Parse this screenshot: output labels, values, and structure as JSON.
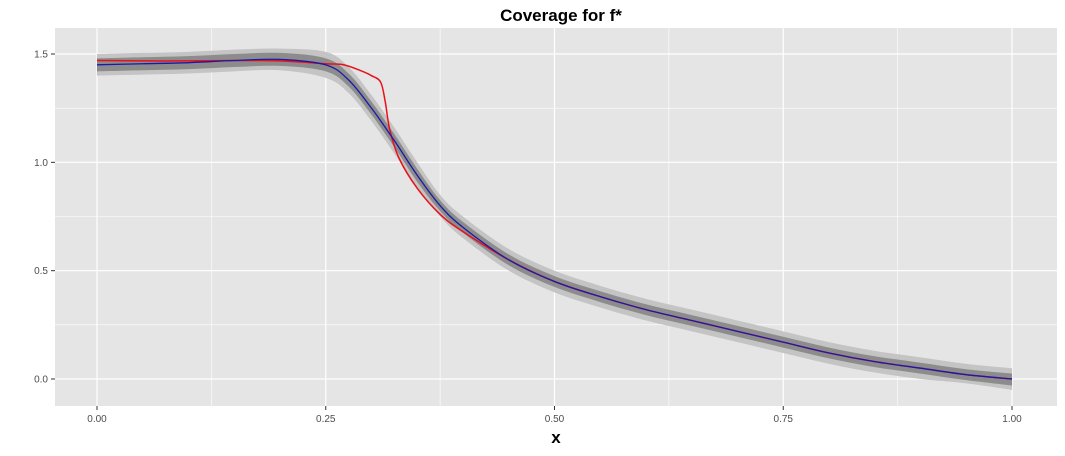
{
  "chart_data": {
    "type": "line",
    "title": "Coverage for f*",
    "xlabel": "x",
    "ylabel": "",
    "xlim": [
      0.0,
      1.0
    ],
    "ylim": [
      0.0,
      1.5
    ],
    "x_ticks": [
      {
        "value": 0.0,
        "label": "0.00"
      },
      {
        "value": 0.25,
        "label": "0.25"
      },
      {
        "value": 0.5,
        "label": "0.50"
      },
      {
        "value": 0.75,
        "label": "0.75"
      },
      {
        "value": 1.0,
        "label": "1.00"
      }
    ],
    "y_ticks": [
      {
        "value": 0.0,
        "label": "0.0"
      },
      {
        "value": 0.5,
        "label": "0.5"
      },
      {
        "value": 1.0,
        "label": "1.0"
      },
      {
        "value": 1.5,
        "label": "1.5"
      }
    ],
    "grid": true,
    "legend": "none",
    "colors": {
      "panel": "#e5e5e5",
      "grid": "#ffffff",
      "band_outer": "#c4c4c4",
      "band_inner": "#8c8c8c",
      "estimate": "#1a1aa8",
      "truth": "#e8111b"
    },
    "x": [
      0.0,
      0.05,
      0.1,
      0.15,
      0.2,
      0.25,
      0.275,
      0.3,
      0.325,
      0.35,
      0.375,
      0.4,
      0.45,
      0.5,
      0.55,
      0.6,
      0.65,
      0.7,
      0.75,
      0.8,
      0.85,
      0.9,
      0.95,
      1.0
    ],
    "series": [
      {
        "values": [
          1.45,
          1.455,
          1.46,
          1.47,
          1.475,
          1.45,
          1.38,
          1.25,
          1.1,
          0.94,
          0.8,
          0.7,
          0.55,
          0.45,
          0.38,
          0.32,
          0.27,
          0.22,
          0.17,
          0.12,
          0.08,
          0.05,
          0.02,
          0.0
        ],
        "lower_outer": [
          1.4,
          1.405,
          1.41,
          1.42,
          1.425,
          1.39,
          1.32,
          1.19,
          1.04,
          0.88,
          0.75,
          0.65,
          0.5,
          0.4,
          0.33,
          0.27,
          0.22,
          0.17,
          0.12,
          0.07,
          0.03,
          0.0,
          -0.02,
          -0.05
        ],
        "upper_outer": [
          1.5,
          1.505,
          1.51,
          1.52,
          1.525,
          1.51,
          1.44,
          1.31,
          1.16,
          1.0,
          0.85,
          0.75,
          0.6,
          0.5,
          0.43,
          0.37,
          0.32,
          0.27,
          0.22,
          0.17,
          0.13,
          0.1,
          0.07,
          0.05
        ],
        "lower_inner": [
          1.42,
          1.425,
          1.43,
          1.44,
          1.445,
          1.42,
          1.35,
          1.22,
          1.07,
          0.91,
          0.775,
          0.675,
          0.525,
          0.425,
          0.355,
          0.295,
          0.245,
          0.195,
          0.145,
          0.095,
          0.055,
          0.025,
          -0.005,
          -0.03
        ],
        "upper_inner": [
          1.48,
          1.485,
          1.49,
          1.5,
          1.505,
          1.48,
          1.41,
          1.28,
          1.13,
          0.97,
          0.825,
          0.725,
          0.575,
          0.475,
          0.405,
          0.345,
          0.295,
          0.245,
          0.195,
          0.145,
          0.105,
          0.075,
          0.045,
          0.025
        ]
      },
      {
        "x": [
          0.0,
          0.05,
          0.1,
          0.15,
          0.2,
          0.25,
          0.27,
          0.29,
          0.3,
          0.31,
          0.315,
          0.32,
          0.33,
          0.35,
          0.375,
          0.4,
          0.45,
          0.5,
          0.55,
          0.6,
          0.65,
          0.7,
          0.75,
          0.8,
          0.85,
          0.9,
          0.95,
          1.0
        ],
        "values": [
          1.47,
          1.468,
          1.468,
          1.47,
          1.468,
          1.455,
          1.45,
          1.42,
          1.4,
          1.37,
          1.28,
          1.15,
          1.02,
          0.88,
          0.76,
          0.68,
          0.55,
          0.45,
          0.38,
          0.32,
          0.27,
          0.22,
          0.17,
          0.12,
          0.08,
          0.05,
          0.02,
          0.0
        ]
      }
    ]
  }
}
